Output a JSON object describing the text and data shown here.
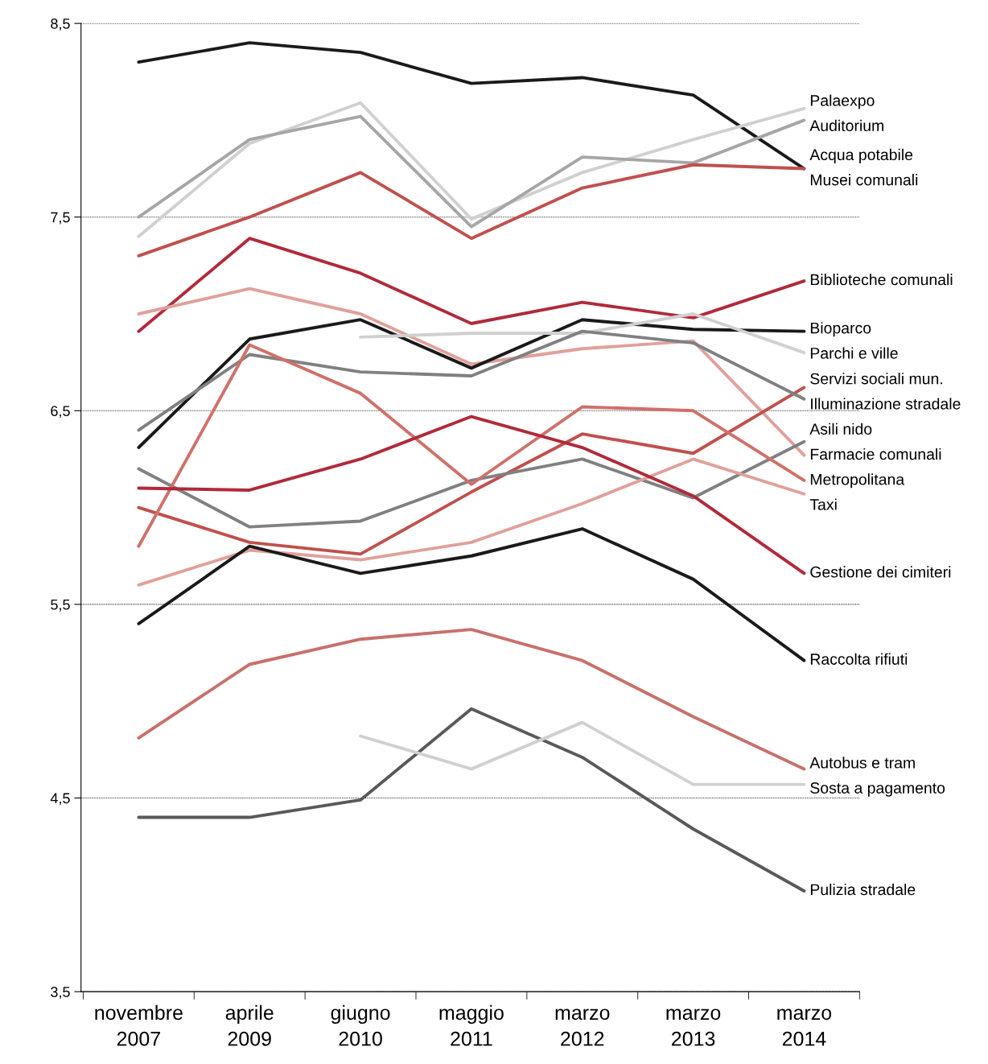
{
  "chart_data": {
    "type": "line",
    "categories": [
      "novembre\n2007",
      "aprile\n2009",
      "giugno\n2010",
      "maggio\n2011",
      "marzo\n2012",
      "marzo\n2013",
      "marzo\n2014"
    ],
    "ylim": [
      3.5,
      8.5
    ],
    "yticks": [
      {
        "value": 3.5,
        "label": "3,5"
      },
      {
        "value": 4.5,
        "label": "4,5"
      },
      {
        "value": 5.5,
        "label": "5,5"
      },
      {
        "value": 6.5,
        "label": "6,5"
      },
      {
        "value": 7.5,
        "label": "7,5"
      },
      {
        "value": 8.5,
        "label": "8,5"
      }
    ],
    "grid": "y",
    "legend": false,
    "marker": "none",
    "line_style": "solid",
    "series": [
      {
        "name": "Acqua potabile",
        "color": "#1a1a1a",
        "values": [
          8.3,
          8.4,
          8.35,
          8.19,
          8.22,
          8.13,
          7.75
        ]
      },
      {
        "name": "Palaexpo",
        "color": "#d0d0d0",
        "values": [
          7.4,
          7.88,
          8.09,
          7.49,
          7.73,
          7.9,
          8.06
        ]
      },
      {
        "name": "Auditorium",
        "color": "#a6a6a6",
        "values": [
          7.5,
          7.9,
          8.02,
          7.45,
          7.81,
          7.78,
          8.0
        ]
      },
      {
        "name": "Musei comunali",
        "color": "#c0504d",
        "values": [
          7.3,
          7.5,
          7.73,
          7.39,
          7.65,
          7.77,
          7.75
        ]
      },
      {
        "name": "Biblioteche comunali",
        "color": "#b02a3a",
        "values": [
          6.91,
          7.39,
          7.21,
          6.95,
          7.06,
          6.98,
          7.17
        ]
      },
      {
        "name": "Farmacie comunali",
        "color": "#e0a09c",
        "values": [
          7.0,
          7.13,
          7.0,
          6.74,
          6.82,
          6.86,
          6.27
        ]
      },
      {
        "name": "Bioparco",
        "color": "#1a1a1a",
        "values": [
          6.31,
          6.87,
          6.97,
          6.72,
          6.97,
          6.92,
          6.91
        ]
      },
      {
        "name": "Parchi e ville",
        "color": "#d0d0d0",
        "values": [
          null,
          null,
          6.88,
          6.9,
          6.9,
          7.0,
          6.8
        ]
      },
      {
        "name": "Servizi sociali mun.",
        "color": "#c0504d",
        "values": [
          6.0,
          5.82,
          5.76,
          6.08,
          6.38,
          6.28,
          6.62
        ]
      },
      {
        "name": "Illuminazione stradale",
        "color": "#808080",
        "values": [
          6.4,
          6.79,
          6.7,
          6.68,
          6.91,
          6.85,
          6.56
        ]
      },
      {
        "name": "Asili nido",
        "color": "#808080",
        "values": [
          6.2,
          5.9,
          5.93,
          6.14,
          6.25,
          6.05,
          6.34
        ]
      },
      {
        "name": "Metropolitana",
        "color": "#d0706a",
        "values": [
          5.8,
          6.84,
          6.59,
          6.12,
          6.52,
          6.5,
          6.14
        ]
      },
      {
        "name": "Taxi",
        "color": "#e0a09c",
        "values": [
          5.6,
          5.78,
          5.73,
          5.82,
          6.02,
          6.25,
          6.07
        ]
      },
      {
        "name": "Gestione dei cimiteri",
        "color": "#b02a3a",
        "values": [
          6.1,
          6.09,
          6.25,
          6.47,
          6.31,
          6.06,
          5.66
        ]
      },
      {
        "name": "Raccolta rifiuti",
        "color": "#1a1a1a",
        "values": [
          5.4,
          5.8,
          5.66,
          5.75,
          5.89,
          5.63,
          5.21
        ]
      },
      {
        "name": "Autobus e tram",
        "color": "#c8706c",
        "values": [
          4.81,
          5.19,
          5.32,
          5.37,
          5.21,
          4.92,
          4.65
        ]
      },
      {
        "name": "Pulizia stradale",
        "color": "#595959",
        "values": [
          4.4,
          4.4,
          4.49,
          4.96,
          4.71,
          4.34,
          4.02
        ]
      },
      {
        "name": "Sosta a pagamento",
        "color": "#d0d0d0",
        "values": [
          null,
          null,
          4.82,
          4.65,
          4.89,
          4.57,
          4.57
        ]
      }
    ]
  }
}
